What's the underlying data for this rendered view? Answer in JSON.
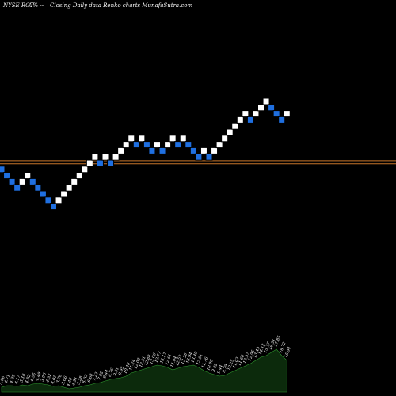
{
  "header": {
    "symbol": "NYSE RGT",
    "change": "0% --",
    "description": "Closing Daily data  Renko  charts MunafaSutra.com"
  },
  "colors": {
    "background": "#000000",
    "up_brick": "#ffffff",
    "down_brick": "#1f6fe0",
    "brick_border": "#000000",
    "reference_line": "#c8752a",
    "volume_fill": "#0c2a0c",
    "volume_stroke": "#2f9a2f"
  },
  "chart_data": [
    {
      "type": "renko",
      "title": "",
      "x_axis": "",
      "y_axis": "",
      "bricks": [
        {
          "dir": "down",
          "level": 9
        },
        {
          "dir": "down",
          "level": 8
        },
        {
          "dir": "down",
          "level": 7
        },
        {
          "dir": "down",
          "level": 6
        },
        {
          "dir": "up",
          "level": 7
        },
        {
          "dir": "up",
          "level": 8
        },
        {
          "dir": "down",
          "level": 7
        },
        {
          "dir": "down",
          "level": 6
        },
        {
          "dir": "down",
          "level": 5
        },
        {
          "dir": "down",
          "level": 4
        },
        {
          "dir": "down",
          "level": 3
        },
        {
          "dir": "up",
          "level": 4
        },
        {
          "dir": "up",
          "level": 5
        },
        {
          "dir": "up",
          "level": 6
        },
        {
          "dir": "up",
          "level": 7
        },
        {
          "dir": "up",
          "level": 8
        },
        {
          "dir": "up",
          "level": 9
        },
        {
          "dir": "up",
          "level": 10
        },
        {
          "dir": "up",
          "level": 11
        },
        {
          "dir": "down",
          "level": 10
        },
        {
          "dir": "up",
          "level": 11
        },
        {
          "dir": "down",
          "level": 10
        },
        {
          "dir": "up",
          "level": 11
        },
        {
          "dir": "up",
          "level": 12
        },
        {
          "dir": "up",
          "level": 13
        },
        {
          "dir": "up",
          "level": 14
        },
        {
          "dir": "down",
          "level": 13
        },
        {
          "dir": "up",
          "level": 14
        },
        {
          "dir": "down",
          "level": 13
        },
        {
          "dir": "down",
          "level": 12
        },
        {
          "dir": "up",
          "level": 13
        },
        {
          "dir": "down",
          "level": 12
        },
        {
          "dir": "up",
          "level": 13
        },
        {
          "dir": "up",
          "level": 14
        },
        {
          "dir": "down",
          "level": 13
        },
        {
          "dir": "up",
          "level": 14
        },
        {
          "dir": "down",
          "level": 13
        },
        {
          "dir": "down",
          "level": 12
        },
        {
          "dir": "down",
          "level": 11
        },
        {
          "dir": "up",
          "level": 12
        },
        {
          "dir": "down",
          "level": 11
        },
        {
          "dir": "up",
          "level": 12
        },
        {
          "dir": "up",
          "level": 13
        },
        {
          "dir": "up",
          "level": 14
        },
        {
          "dir": "up",
          "level": 15
        },
        {
          "dir": "up",
          "level": 16
        },
        {
          "dir": "up",
          "level": 17
        },
        {
          "dir": "up",
          "level": 18
        },
        {
          "dir": "down",
          "level": 17
        },
        {
          "dir": "up",
          "level": 18
        },
        {
          "dir": "up",
          "level": 19
        },
        {
          "dir": "up",
          "level": 20
        },
        {
          "dir": "down",
          "level": 19
        },
        {
          "dir": "down",
          "level": 18
        },
        {
          "dir": "down",
          "level": 17
        },
        {
          "dir": "up",
          "level": 18
        }
      ],
      "reference_lines": [
        {
          "level": 10.4
        },
        {
          "level": 9.9
        }
      ],
      "volume": {
        "values": [
          6,
          8,
          8,
          7,
          9,
          8,
          10,
          11,
          10,
          9,
          7,
          8,
          6,
          4,
          5,
          6,
          8,
          9,
          11,
          12,
          14,
          16,
          17,
          18,
          20,
          24,
          26,
          28,
          30,
          32,
          34,
          33,
          31,
          28,
          30,
          32,
          33,
          34,
          31,
          27,
          24,
          22,
          20,
          21,
          24,
          27,
          30,
          33,
          36,
          40,
          44,
          46,
          50,
          54,
          46,
          40
        ],
        "labels": [
          "5.06",
          "4.71",
          "4.39",
          "4.17",
          "5.18",
          "4.82",
          "4.55",
          "4.49",
          "3.96",
          "4.32",
          "4.01",
          "3.78",
          "3.66",
          "4.48",
          "4.91",
          "5.28",
          "6.03",
          "6.68",
          "7.23",
          "7.92",
          "8.44",
          "8.76",
          "9.31",
          "9.95",
          "10.46",
          "11.24",
          "12.03",
          "12.51",
          "12.88",
          "13.06",
          "12.77",
          "13.17",
          "12.61",
          "11.84",
          "12.52",
          "13.28",
          "13.94",
          "13.49",
          "12.91",
          "11.76",
          "10.96",
          "9.82",
          "9.44",
          "9.79",
          "10.25",
          "11.03",
          "11.68",
          "12.37",
          "12.95",
          "13.43",
          "14.12",
          "15.37",
          "16.31",
          "17.85",
          "16.72",
          "15.94"
        ]
      }
    }
  ]
}
